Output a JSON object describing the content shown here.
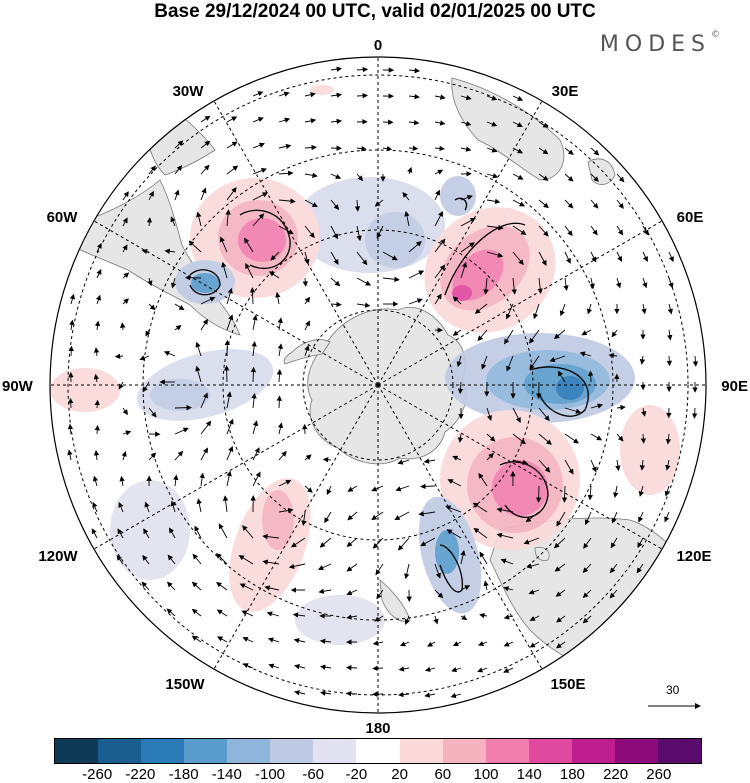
{
  "title": "Base 29/12/2024 00 UTC, valid 02/01/2025 00 UTC",
  "brand": "MODES",
  "brand_mark": "©",
  "longitudes": {
    "top": "0",
    "bottom": "180",
    "left": "90W",
    "right": "90E",
    "ul30": "30W",
    "ur30": "30E",
    "ul60": "60W",
    "ur60": "60E",
    "ll120": "120W",
    "lr120": "120E",
    "ll150": "150W",
    "lr150": "150E"
  },
  "reference_vector": "30",
  "colorbar": {
    "ticks": [
      "-260",
      "-220",
      "-180",
      "-140",
      "-100",
      "-60",
      "-20",
      "20",
      "60",
      "100",
      "140",
      "180",
      "220",
      "260"
    ],
    "colors": [
      "#0e3a58",
      "#1a5e8f",
      "#2a7ab8",
      "#5a9ccb",
      "#8fb6da",
      "#bfcbe4",
      "#e2e2f0",
      "#ffffff",
      "#fbd9d9",
      "#f5b3c0",
      "#f07fae",
      "#e04a9e",
      "#bf1f8e",
      "#8c0a7a",
      "#5a0a6a"
    ]
  }
}
